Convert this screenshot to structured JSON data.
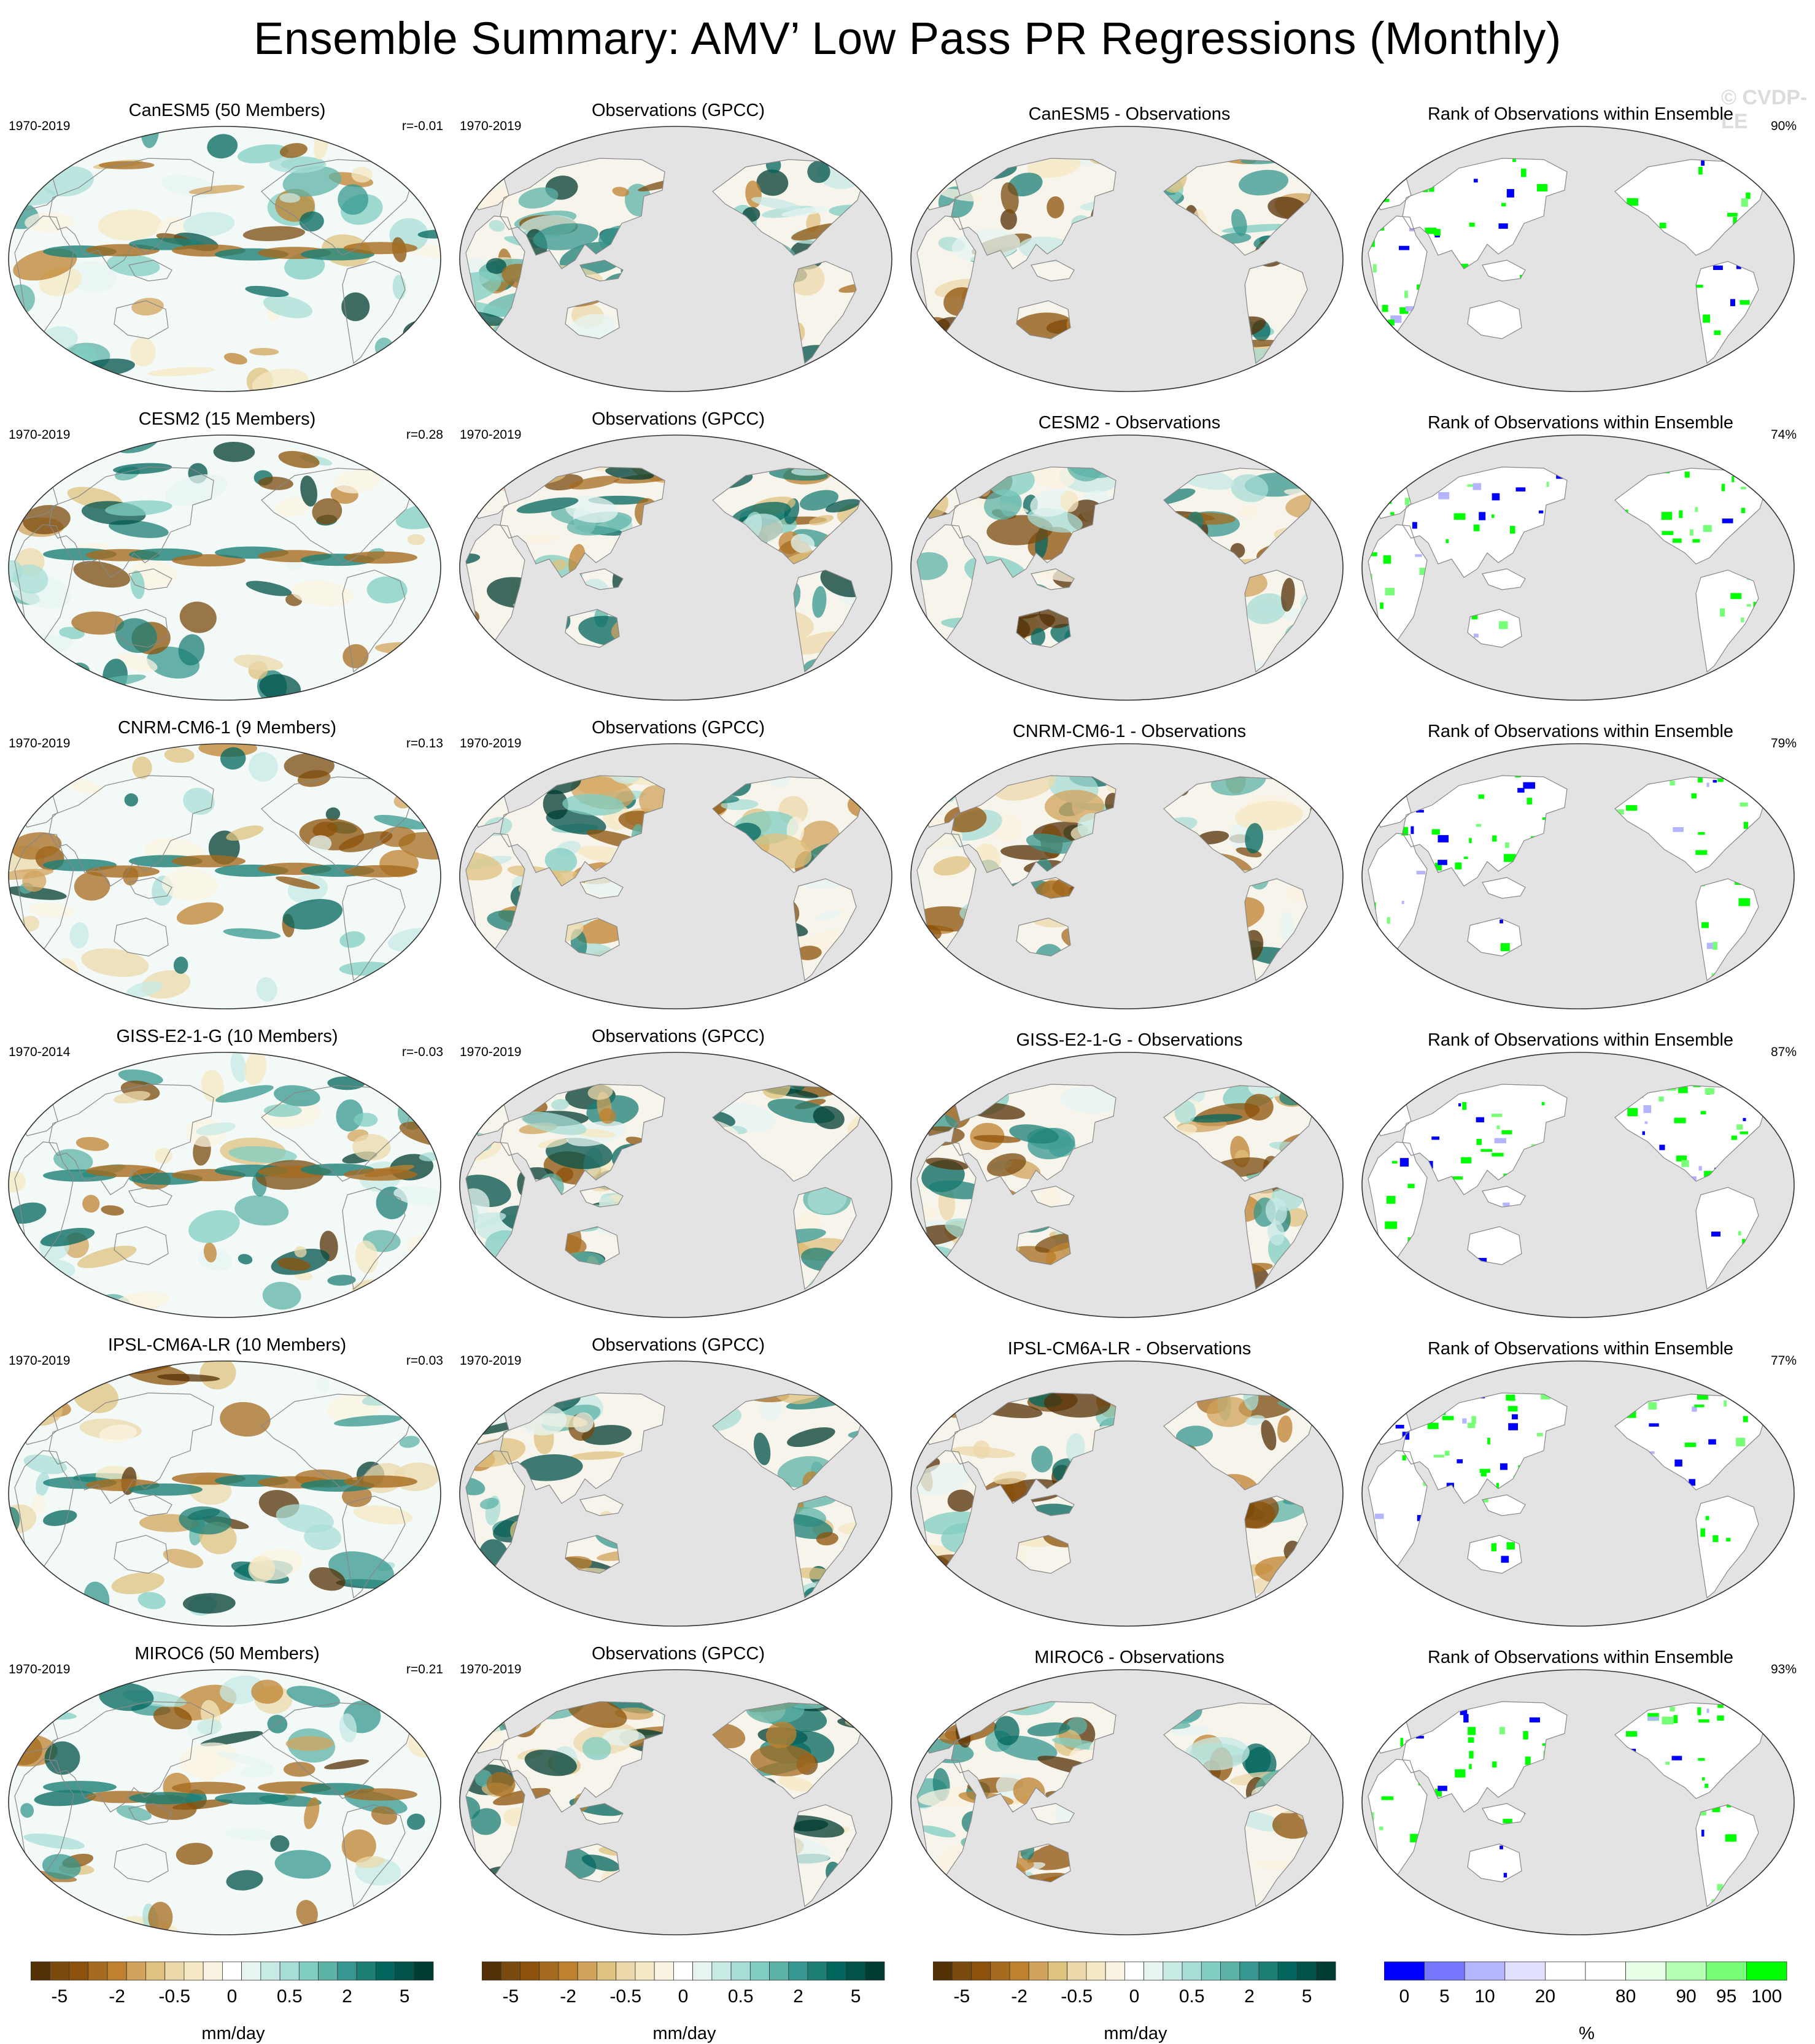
{
  "title": "Ensemble Summary: AMV’ Low Pass PR Regressions (Monthly)",
  "watermark": "© CVDP-LE",
  "colors": {
    "brown_dark": "#543005",
    "teal_dark": "#003c30",
    "land_gray": "#e3e3e3",
    "rank_blue": "#0000ff",
    "rank_green": "#00ff00"
  },
  "chart_data": [
    {
      "type": "heatmap",
      "title": "CanESM5 (50 Members)",
      "rows": [
        {
          "model": {
            "title": "CanESM5 (50 Members)",
            "years": "1970-2019",
            "corr": "r=-0.01"
          },
          "obs": {
            "title": "Observations (GPCC)",
            "years": "1970-2019"
          },
          "diff": {
            "title": "CanESM5 - Observations"
          },
          "rank": {
            "title": "Rank of Observations within Ensemble",
            "pct": "90%"
          }
        },
        {
          "model": {
            "title": "CESM2 (15 Members)",
            "years": "1970-2019",
            "corr": "r=0.28"
          },
          "obs": {
            "title": "Observations (GPCC)",
            "years": "1970-2019"
          },
          "diff": {
            "title": "CESM2 - Observations"
          },
          "rank": {
            "title": "Rank of Observations within Ensemble",
            "pct": "74%"
          }
        },
        {
          "model": {
            "title": "CNRM-CM6-1 (9 Members)",
            "years": "1970-2019",
            "corr": "r=0.13"
          },
          "obs": {
            "title": "Observations (GPCC)",
            "years": "1970-2019"
          },
          "diff": {
            "title": "CNRM-CM6-1 - Observations"
          },
          "rank": {
            "title": "Rank of Observations within Ensemble",
            "pct": "79%"
          }
        },
        {
          "model": {
            "title": "GISS-E2-1-G (10 Members)",
            "years": "1970-2014",
            "corr": "r=-0.03"
          },
          "obs": {
            "title": "Observations (GPCC)",
            "years": "1970-2019"
          },
          "diff": {
            "title": "GISS-E2-1-G - Observations"
          },
          "rank": {
            "title": "Rank of Observations within Ensemble",
            "pct": "87%"
          }
        },
        {
          "model": {
            "title": "IPSL-CM6A-LR (10 Members)",
            "years": "1970-2019",
            "corr": "r=0.03"
          },
          "obs": {
            "title": "Observations (GPCC)",
            "years": "1970-2019"
          },
          "diff": {
            "title": "IPSL-CM6A-LR - Observations"
          },
          "rank": {
            "title": "Rank of Observations within Ensemble",
            "pct": "77%"
          }
        },
        {
          "model": {
            "title": "MIROC6 (50 Members)",
            "years": "1970-2019",
            "corr": "r=0.21"
          },
          "obs": {
            "title": "Observations (GPCC)",
            "years": "1970-2019"
          },
          "diff": {
            "title": "MIROC6 - Observations"
          },
          "rank": {
            "title": "Rank of Observations within Ensemble",
            "pct": "93%"
          }
        }
      ]
    }
  ],
  "colorbars": [
    {
      "label": "mm/day",
      "ticks": [
        "-5",
        "-2",
        "-0.5",
        "0",
        "0.5",
        "2",
        "5"
      ],
      "colors": [
        "#543005",
        "#7a4a0e",
        "#8c510a",
        "#a66b1f",
        "#bf812d",
        "#d1a35c",
        "#dfc27d",
        "#ecd9ab",
        "#f6e8c3",
        "#fbf3e2",
        "#ffffff",
        "#e6f4f2",
        "#c7eae5",
        "#a8ddd5",
        "#80cdc1",
        "#5db3a7",
        "#35978f",
        "#1c7f76",
        "#01665e",
        "#00524a",
        "#003c30"
      ]
    },
    {
      "label": "mm/day",
      "ticks": [
        "-5",
        "-2",
        "-0.5",
        "0",
        "0.5",
        "2",
        "5"
      ],
      "colors": [
        "#543005",
        "#7a4a0e",
        "#8c510a",
        "#a66b1f",
        "#bf812d",
        "#d1a35c",
        "#dfc27d",
        "#ecd9ab",
        "#f6e8c3",
        "#fbf3e2",
        "#ffffff",
        "#e6f4f2",
        "#c7eae5",
        "#a8ddd5",
        "#80cdc1",
        "#5db3a7",
        "#35978f",
        "#1c7f76",
        "#01665e",
        "#00524a",
        "#003c30"
      ]
    },
    {
      "label": "mm/day",
      "ticks": [
        "-5",
        "-2",
        "-0.5",
        "0",
        "0.5",
        "2",
        "5"
      ],
      "colors": [
        "#543005",
        "#7a4a0e",
        "#8c510a",
        "#a66b1f",
        "#bf812d",
        "#d1a35c",
        "#dfc27d",
        "#ecd9ab",
        "#f6e8c3",
        "#fbf3e2",
        "#ffffff",
        "#e6f4f2",
        "#c7eae5",
        "#a8ddd5",
        "#80cdc1",
        "#5db3a7",
        "#35978f",
        "#1c7f76",
        "#01665e",
        "#00524a",
        "#003c30"
      ]
    },
    {
      "label": "%",
      "ticks": [
        "0",
        "5",
        "10",
        "20",
        "80",
        "90",
        "95",
        "100"
      ],
      "colors": [
        "#0000ff",
        "#7878ff",
        "#b4b4ff",
        "#e1e1ff",
        "#ffffff",
        "#ffffff",
        "#e6ffe6",
        "#b4ffb4",
        "#78ff78",
        "#00ff00"
      ]
    }
  ]
}
